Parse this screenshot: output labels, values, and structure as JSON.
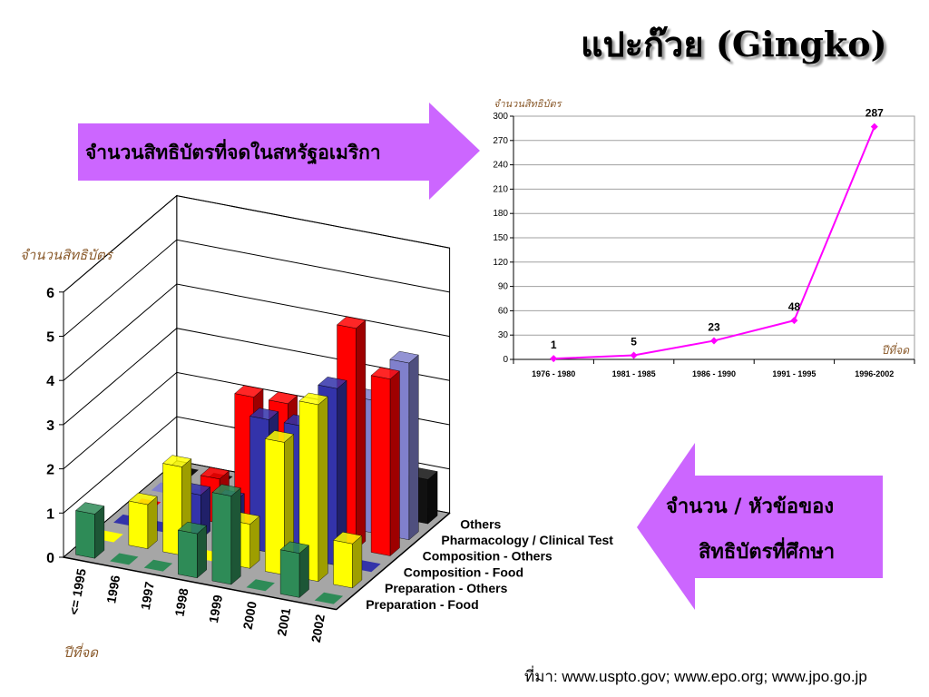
{
  "title": "แปะก๊วย (Gingko)",
  "arrow_right_text": "จำนวนสิทธิบัตรที่จดในสหรัฐอเมริกา",
  "arrow_left_text_line1": "จำนวน / หัวข้อของ",
  "arrow_left_text_line2": "สิทธิบัตรที่ศึกษา",
  "source_note": "ที่มา: www.uspto.gov; www.epo.org; www.jpo.go.jp",
  "colors": {
    "line": "#ff00ff",
    "arrow_fill": "#cc66ff",
    "Preparation - Food": "#2e8b57",
    "Preparation - Others": "#ffff00",
    "Composition - Food": "#3333aa",
    "Composition - Others": "#ff0000",
    "Pharmacology / Clinical Test": "#8080cc",
    "Others": "#111111"
  },
  "chart_data": [
    {
      "type": "line",
      "ylabel": "จำนวนสิทธิบัตร",
      "xlabel": "ปีที่จด",
      "categories": [
        "1976 - 1980",
        "1981 - 1985",
        "1986 - 1990",
        "1991 - 1995",
        "1996-2002"
      ],
      "values": [
        1,
        5,
        23,
        48,
        287
      ],
      "ylim": [
        0,
        300
      ],
      "yticks": [
        0,
        30,
        60,
        90,
        120,
        150,
        180,
        210,
        240,
        270,
        300
      ],
      "grid": true
    },
    {
      "type": "bar",
      "subtype": "3d-bar",
      "ylabel": "จำนวนสิทธิบัตร",
      "xlabel": "ปีที่จด",
      "categories": [
        "<= 1995",
        "1996",
        "1997",
        "1998",
        "1999",
        "2000",
        "2001",
        "2002"
      ],
      "ylim": [
        0,
        6
      ],
      "yticks": [
        0,
        1,
        2,
        3,
        4,
        5,
        6
      ],
      "series": [
        {
          "name": "Preparation - Food",
          "values": [
            1,
            0,
            0,
            1,
            2,
            0,
            1,
            0
          ]
        },
        {
          "name": "Preparation - Others",
          "values": [
            0,
            1,
            2,
            0,
            1,
            3,
            4,
            1
          ]
        },
        {
          "name": "Composition - Food",
          "values": [
            0,
            0,
            1,
            1,
            3,
            3,
            4,
            0
          ]
        },
        {
          "name": "Composition - Others",
          "values": [
            0,
            0,
            1,
            3,
            3,
            0,
            5,
            4
          ]
        },
        {
          "name": "Pharmacology / Clinical Test",
          "values": [
            0,
            0,
            0,
            0,
            0,
            0,
            3,
            4
          ]
        },
        {
          "name": "Others",
          "values": [
            0,
            0,
            0,
            0,
            0,
            0,
            0,
            1
          ]
        }
      ]
    }
  ]
}
